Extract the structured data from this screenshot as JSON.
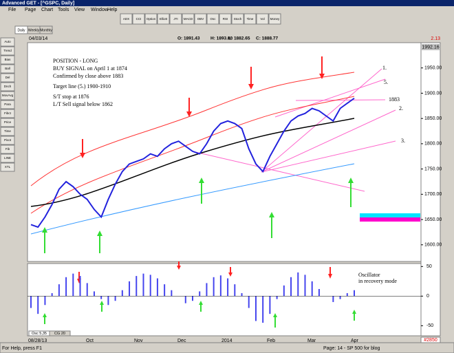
{
  "window": {
    "title": "Advanced GET - [^GSPC, Daily]"
  },
  "menu": [
    "File",
    "Page",
    "Chart",
    "Tools",
    "View",
    "Window",
    "Help"
  ],
  "toolbar": [
    "ADX",
    "CCI",
    "Option",
    "Elliott",
    "JTI",
    "MACD",
    "OBV",
    "Osc",
    "RSI",
    "Stoch",
    "Time",
    "Vol",
    "Money"
  ],
  "tabs": [
    "Daily",
    "Weekly",
    "Monthly"
  ],
  "side_tools": [
    "Auto",
    "Trend",
    "Bias",
    "Ball",
    "Del",
    "Dnch",
    "MovAvg",
    "Para",
    "Fibct",
    "Price",
    "Time",
    "Pivot",
    "Fib",
    "LINE",
    "XTL"
  ],
  "header": {
    "date": "04/03/14",
    "open": "O: 1891.43",
    "high": "H: 1893.80",
    "low": "L: 1882.65",
    "close": "C: 1888.77",
    "change": "2.13"
  },
  "price_panel": {
    "last": "1992.16",
    "ylim": [
      1567,
      2000
    ],
    "yticks": [
      {
        "value": 1950,
        "label": "1950.00"
      },
      {
        "value": 1900,
        "label": "1900.00"
      },
      {
        "value": 1850,
        "label": "1850.00"
      },
      {
        "value": 1800,
        "label": "1800.00"
      },
      {
        "value": 1750,
        "label": "1750.00"
      },
      {
        "value": 1700,
        "label": "1700.00"
      },
      {
        "value": 1650,
        "label": "1650.00"
      },
      {
        "value": 1600,
        "label": "1600.00"
      }
    ],
    "closes": [
      1640,
      1635,
      1655,
      1680,
      1710,
      1725,
      1715,
      1700,
      1690,
      1670,
      1655,
      1690,
      1720,
      1745,
      1760,
      1765,
      1770,
      1780,
      1775,
      1790,
      1800,
      1805,
      1795,
      1785,
      1780,
      1800,
      1825,
      1840,
      1845,
      1840,
      1830,
      1790,
      1760,
      1745,
      1775,
      1800,
      1825,
      1845,
      1855,
      1860,
      1870,
      1865,
      1855,
      1845,
      1870,
      1880,
      1890
    ],
    "notes": [
      "POSITION - LONG",
      "BUY SIGNAL on April 1 at 1874",
      "Confirmed by close above 1883",
      "Target line (5.) 1900-1910",
      "S/T stop at 1876",
      "L/T Sell signal below 1862"
    ],
    "marks": [
      "1.",
      "5.",
      "1883",
      "2.",
      "3."
    ]
  },
  "oscillator": {
    "tabs": [
      "Osc 5,35",
      "CG 20"
    ],
    "ylim": [
      -67,
      55
    ],
    "yticks": [
      50,
      0,
      -50
    ],
    "values": [
      -20,
      -30,
      -15,
      5,
      20,
      32,
      38,
      34,
      22,
      8,
      -5,
      -15,
      -8,
      10,
      25,
      34,
      38,
      36,
      30,
      20,
      10,
      0,
      -12,
      -8,
      8,
      22,
      32,
      35,
      30,
      20,
      5,
      -20,
      -42,
      -45,
      -30,
      -5,
      18,
      32,
      40,
      36,
      25,
      12,
      0,
      -10,
      -5,
      5,
      10
    ],
    "note": [
      "Oscillator",
      "in recovery mode"
    ]
  },
  "x_axis": {
    "start": "08/28/13",
    "labels": [
      "Oct",
      "Nov",
      "Dec",
      "2014",
      "Feb",
      "Mar",
      "Apr"
    ]
  },
  "status": {
    "left": "For Help, press F1",
    "right": "Page: 14 - SP 500 for blog",
    "count": "#2850"
  }
}
